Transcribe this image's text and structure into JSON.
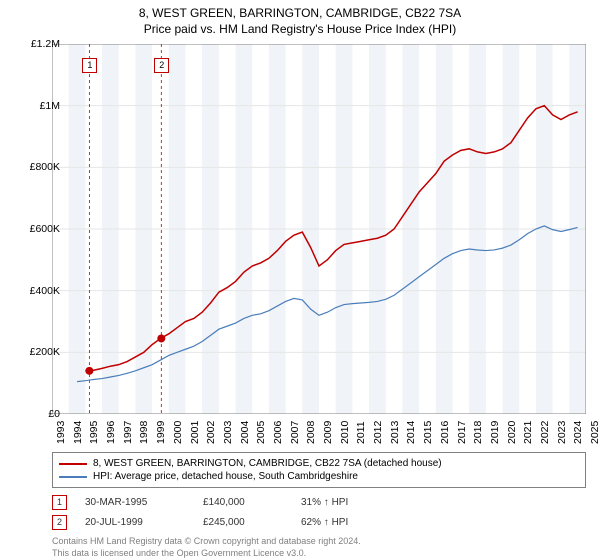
{
  "title": "8, WEST GREEN, BARRINGTON, CAMBRIDGE, CB22 7SA",
  "subtitle": "Price paid vs. HM Land Registry's House Price Index (HPI)",
  "chart": {
    "type": "line",
    "x_start": 1993,
    "x_end": 2025,
    "xtick_step": 1,
    "y_start": 0,
    "y_end": 1200000,
    "ytick_step": 200000,
    "ytick_labels": [
      "£0",
      "£200K",
      "£400K",
      "£600K",
      "£800K",
      "£1M",
      "£1.2M"
    ],
    "background_color": "#ffffff",
    "grid_color": "#e6e6e6",
    "border_color": "#808080",
    "alt_band_color": "#f0f3f7",
    "alt_band_years": [
      [
        1994,
        1995
      ],
      [
        1996,
        1997
      ],
      [
        1998,
        1999
      ],
      [
        2000,
        2001
      ],
      [
        2002,
        2003
      ],
      [
        2004,
        2005
      ],
      [
        2006,
        2007
      ],
      [
        2008,
        2009
      ],
      [
        2010,
        2011
      ],
      [
        2012,
        2013
      ],
      [
        2014,
        2015
      ],
      [
        2016,
        2017
      ],
      [
        2018,
        2019
      ],
      [
        2020,
        2021
      ],
      [
        2022,
        2023
      ],
      [
        2024,
        2025
      ]
    ],
    "series": [
      {
        "name": "property",
        "color": "#c00000",
        "width": 1.5,
        "data": [
          [
            1995.0,
            140000
          ],
          [
            1995.5,
            142000
          ],
          [
            1996.0,
            148000
          ],
          [
            1996.5,
            155000
          ],
          [
            1997.0,
            160000
          ],
          [
            1997.5,
            170000
          ],
          [
            1998.0,
            185000
          ],
          [
            1998.5,
            200000
          ],
          [
            1999.0,
            225000
          ],
          [
            1999.5,
            245000
          ],
          [
            2000.0,
            260000
          ],
          [
            2000.5,
            280000
          ],
          [
            2001.0,
            300000
          ],
          [
            2001.5,
            310000
          ],
          [
            2002.0,
            330000
          ],
          [
            2002.5,
            360000
          ],
          [
            2003.0,
            395000
          ],
          [
            2003.5,
            410000
          ],
          [
            2004.0,
            430000
          ],
          [
            2004.5,
            460000
          ],
          [
            2005.0,
            480000
          ],
          [
            2005.5,
            490000
          ],
          [
            2006.0,
            505000
          ],
          [
            2006.5,
            530000
          ],
          [
            2007.0,
            560000
          ],
          [
            2007.5,
            580000
          ],
          [
            2008.0,
            590000
          ],
          [
            2008.5,
            540000
          ],
          [
            2009.0,
            480000
          ],
          [
            2009.5,
            500000
          ],
          [
            2010.0,
            530000
          ],
          [
            2010.5,
            550000
          ],
          [
            2011.0,
            555000
          ],
          [
            2011.5,
            560000
          ],
          [
            2012.0,
            565000
          ],
          [
            2012.5,
            570000
          ],
          [
            2013.0,
            580000
          ],
          [
            2013.5,
            600000
          ],
          [
            2014.0,
            640000
          ],
          [
            2014.5,
            680000
          ],
          [
            2015.0,
            720000
          ],
          [
            2015.5,
            750000
          ],
          [
            2016.0,
            780000
          ],
          [
            2016.5,
            820000
          ],
          [
            2017.0,
            840000
          ],
          [
            2017.5,
            855000
          ],
          [
            2018.0,
            860000
          ],
          [
            2018.5,
            850000
          ],
          [
            2019.0,
            845000
          ],
          [
            2019.5,
            850000
          ],
          [
            2020.0,
            860000
          ],
          [
            2020.5,
            880000
          ],
          [
            2021.0,
            920000
          ],
          [
            2021.5,
            960000
          ],
          [
            2022.0,
            990000
          ],
          [
            2022.5,
            1000000
          ],
          [
            2023.0,
            970000
          ],
          [
            2023.5,
            955000
          ],
          [
            2024.0,
            970000
          ],
          [
            2024.5,
            980000
          ]
        ]
      },
      {
        "name": "hpi",
        "color": "#4a7ebb",
        "width": 1.2,
        "data": [
          [
            1994.5,
            105000
          ],
          [
            1995.0,
            108000
          ],
          [
            1995.5,
            112000
          ],
          [
            1996.0,
            115000
          ],
          [
            1996.5,
            120000
          ],
          [
            1997.0,
            125000
          ],
          [
            1997.5,
            132000
          ],
          [
            1998.0,
            140000
          ],
          [
            1998.5,
            150000
          ],
          [
            1999.0,
            160000
          ],
          [
            1999.5,
            175000
          ],
          [
            2000.0,
            190000
          ],
          [
            2000.5,
            200000
          ],
          [
            2001.0,
            210000
          ],
          [
            2001.5,
            220000
          ],
          [
            2002.0,
            235000
          ],
          [
            2002.5,
            255000
          ],
          [
            2003.0,
            275000
          ],
          [
            2003.5,
            285000
          ],
          [
            2004.0,
            295000
          ],
          [
            2004.5,
            310000
          ],
          [
            2005.0,
            320000
          ],
          [
            2005.5,
            325000
          ],
          [
            2006.0,
            335000
          ],
          [
            2006.5,
            350000
          ],
          [
            2007.0,
            365000
          ],
          [
            2007.5,
            375000
          ],
          [
            2008.0,
            370000
          ],
          [
            2008.5,
            340000
          ],
          [
            2009.0,
            320000
          ],
          [
            2009.5,
            330000
          ],
          [
            2010.0,
            345000
          ],
          [
            2010.5,
            355000
          ],
          [
            2011.0,
            358000
          ],
          [
            2011.5,
            360000
          ],
          [
            2012.0,
            362000
          ],
          [
            2012.5,
            365000
          ],
          [
            2013.0,
            372000
          ],
          [
            2013.5,
            385000
          ],
          [
            2014.0,
            405000
          ],
          [
            2014.5,
            425000
          ],
          [
            2015.0,
            445000
          ],
          [
            2015.5,
            465000
          ],
          [
            2016.0,
            485000
          ],
          [
            2016.5,
            505000
          ],
          [
            2017.0,
            520000
          ],
          [
            2017.5,
            530000
          ],
          [
            2018.0,
            535000
          ],
          [
            2018.5,
            532000
          ],
          [
            2019.0,
            530000
          ],
          [
            2019.5,
            532000
          ],
          [
            2020.0,
            538000
          ],
          [
            2020.5,
            548000
          ],
          [
            2021.0,
            565000
          ],
          [
            2021.5,
            585000
          ],
          [
            2022.0,
            600000
          ],
          [
            2022.5,
            610000
          ],
          [
            2023.0,
            598000
          ],
          [
            2023.5,
            592000
          ],
          [
            2024.0,
            598000
          ],
          [
            2024.5,
            605000
          ]
        ]
      }
    ],
    "transaction_markers": [
      {
        "n": "1",
        "x": 1995.24,
        "y": 140000,
        "dash_color": "#c00000"
      },
      {
        "n": "2",
        "x": 1999.55,
        "y": 245000,
        "dash_color": "#c00000"
      }
    ]
  },
  "legend": {
    "series1_label": "8, WEST GREEN, BARRINGTON, CAMBRIDGE, CB22 7SA (detached house)",
    "series1_color": "#c00000",
    "series2_label": "HPI: Average price, detached house, South Cambridgeshire",
    "series2_color": "#4a7ebb"
  },
  "transactions": [
    {
      "n": "1",
      "date": "30-MAR-1995",
      "price": "£140,000",
      "hpi": "31% ↑ HPI"
    },
    {
      "n": "2",
      "date": "20-JUL-1999",
      "price": "£245,000",
      "hpi": "62% ↑ HPI"
    }
  ],
  "footnote_line1": "Contains HM Land Registry data © Crown copyright and database right 2024.",
  "footnote_line2": "This data is licensed under the Open Government Licence v3.0."
}
